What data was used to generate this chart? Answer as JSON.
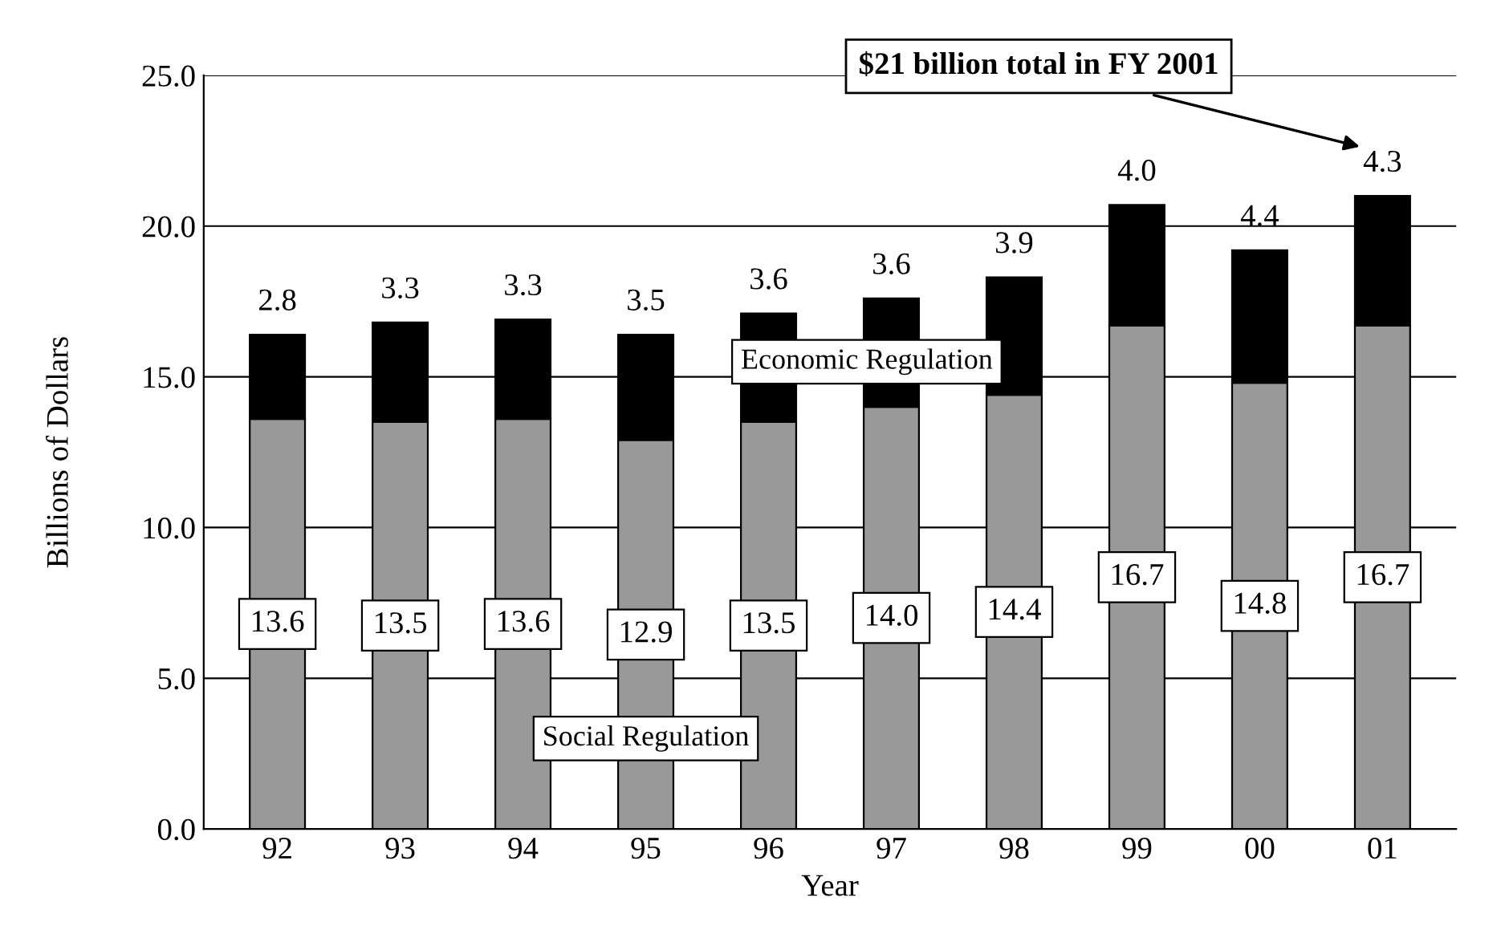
{
  "chart_data": {
    "type": "bar",
    "stacked": true,
    "xlabel": "Year",
    "ylabel": "Billions of Dollars",
    "categories": [
      "92",
      "93",
      "94",
      "95",
      "96",
      "97",
      "98",
      "99",
      "00",
      "01"
    ],
    "series": [
      {
        "name": "Social Regulation",
        "color": "#999999",
        "values": [
          13.6,
          13.5,
          13.6,
          12.9,
          13.5,
          14.0,
          14.4,
          16.7,
          14.8,
          16.7
        ],
        "value_labels": [
          "13.6",
          "13.5",
          "13.6",
          "12.9",
          "13.5",
          "14.0",
          "14.4",
          "16.7",
          "14.8",
          "16.7"
        ]
      },
      {
        "name": "Economic Regulation",
        "color": "#000000",
        "values": [
          2.8,
          3.3,
          3.3,
          3.5,
          3.6,
          3.6,
          3.9,
          4.0,
          4.4,
          4.3
        ],
        "value_labels": [
          "2.8",
          "3.3",
          "3.3",
          "3.5",
          "3.6",
          "3.6",
          "3.9",
          "4.0",
          "4.4",
          "4.3"
        ]
      }
    ],
    "ylim": [
      0,
      25
    ],
    "yticks": [
      {
        "value": 0,
        "label": "0.0"
      },
      {
        "value": 5,
        "label": "5.0"
      },
      {
        "value": 10,
        "label": "10.0"
      },
      {
        "value": 15,
        "label": "15.0"
      },
      {
        "value": 20,
        "label": "20.0"
      },
      {
        "value": 25,
        "label": "25.0"
      }
    ],
    "grid": "y",
    "legend": false,
    "annotations": [
      "$21 billion total in FY 2001"
    ]
  }
}
